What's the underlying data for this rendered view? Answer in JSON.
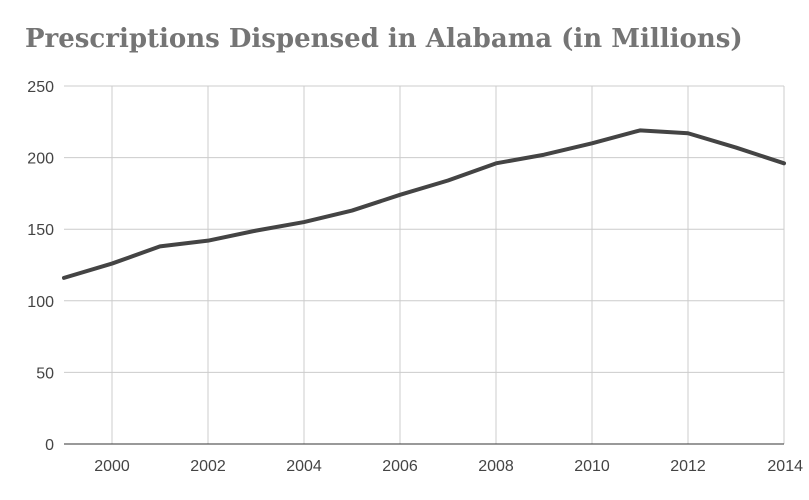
{
  "chart_data": {
    "type": "line",
    "title": "Prescriptions Dispensed in Alabama (in Millions)",
    "xlabel": "",
    "ylabel": "",
    "x": [
      1999,
      2000,
      2001,
      2002,
      2003,
      2004,
      2005,
      2006,
      2007,
      2008,
      2009,
      2010,
      2011,
      2012,
      2013,
      2014
    ],
    "series": [
      {
        "name": "Prescriptions Dispensed",
        "values": [
          116,
          126,
          138,
          142,
          149,
          155,
          163,
          174,
          184,
          196,
          202,
          210,
          219,
          217,
          207,
          196
        ]
      }
    ],
    "xlim": [
      1999,
      2014
    ],
    "ylim": [
      0,
      250
    ],
    "x_ticks": [
      2000,
      2002,
      2004,
      2006,
      2008,
      2010,
      2012,
      2014
    ],
    "y_ticks": [
      0,
      50,
      100,
      150,
      200,
      250
    ],
    "grid": true,
    "line_color": "#444444",
    "grid_color": "#cccccc",
    "title_color": "#757575"
  }
}
